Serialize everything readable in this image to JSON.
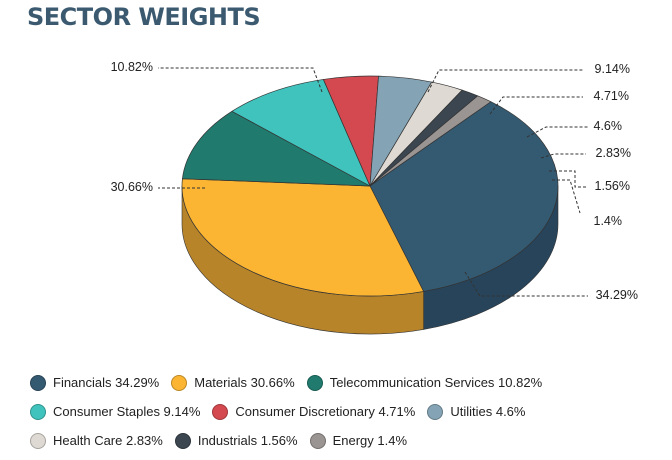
{
  "chart_data": {
    "type": "pie",
    "title": "SECTOR WEIGHTS",
    "slices": [
      {
        "name": "Financials",
        "value": 34.29,
        "label": "34.29%",
        "legend": "Financials 34.29%",
        "color": "#345a72",
        "dark": "#27445a"
      },
      {
        "name": "Materials",
        "value": 30.66,
        "label": "30.66%",
        "legend": "Materials 30.66%",
        "color": "#fbb532",
        "dark": "#b8842a"
      },
      {
        "name": "Telecommunication Services",
        "value": 10.82,
        "label": "10.82%",
        "legend": "Telecommunication Services 10.82%",
        "color": "#217a6e",
        "dark": "#185a51"
      },
      {
        "name": "Consumer Staples",
        "value": 9.14,
        "label": "9.14%",
        "legend": "Consumer Staples 9.14%",
        "color": "#41c3bd",
        "dark": "#2f918c"
      },
      {
        "name": "Consumer Discretionary",
        "value": 4.71,
        "label": "4.71%",
        "legend": "Consumer Discretionary 4.71%",
        "color": "#d4494f",
        "dark": "#9c353a"
      },
      {
        "name": "Utilities",
        "value": 4.6,
        "label": "4.6%",
        "legend": "Utilities 4.6%",
        "color": "#84a3b4",
        "dark": "#617a87"
      },
      {
        "name": "Health Care",
        "value": 2.83,
        "label": "2.83%",
        "legend": "Health Care 2.83%",
        "color": "#dedad3",
        "dark": "#a9a59f"
      },
      {
        "name": "Industrials",
        "value": 1.56,
        "label": "1.56%",
        "legend": "Industrials 1.56%",
        "color": "#3b4650",
        "dark": "#2a333b"
      },
      {
        "name": "Energy",
        "value": 1.4,
        "label": "1.4%",
        "legend": "Energy 1.4%",
        "color": "#9a9492",
        "dark": "#726d6b"
      }
    ],
    "legend_placement": "bottom",
    "style": "3d"
  }
}
